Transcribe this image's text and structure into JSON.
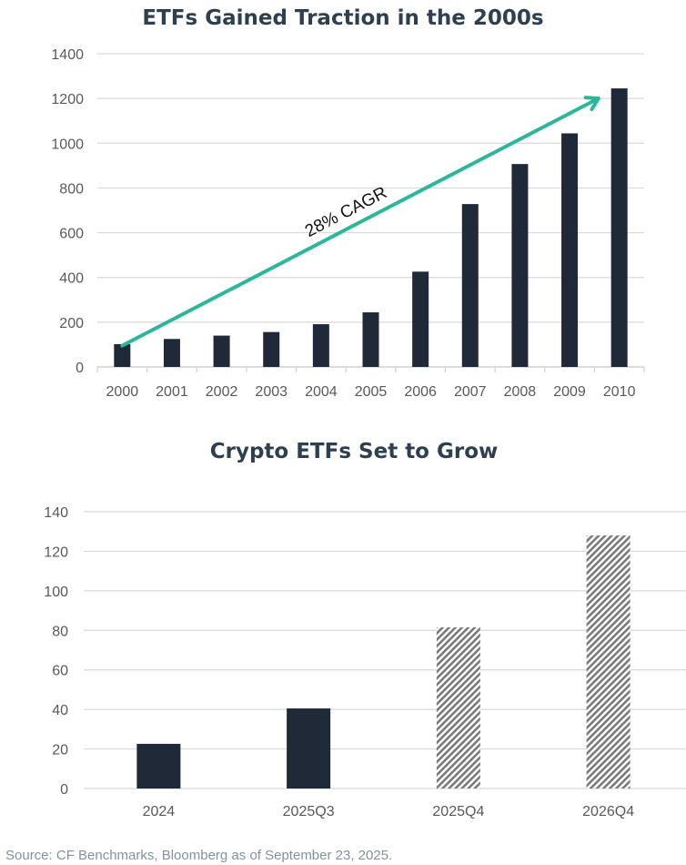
{
  "chart_data": [
    {
      "type": "bar",
      "title": "ETFs Gained Traction in the 2000s",
      "categories": [
        "2000",
        "2001",
        "2002",
        "2003",
        "2004",
        "2005",
        "2006",
        "2007",
        "2008",
        "2009",
        "2010"
      ],
      "values": [
        102,
        125,
        140,
        156,
        191,
        244,
        426,
        728,
        907,
        1044,
        1245
      ],
      "ylim": [
        0,
        1400
      ],
      "yticks": [
        0,
        200,
        400,
        600,
        800,
        1000,
        1200,
        1400
      ],
      "grid": true,
      "bar_color": "#1f2937",
      "annotation": {
        "text": "28% CAGR",
        "type": "arrow",
        "from": [
          "2000",
          95
        ],
        "to": [
          "2010",
          1200
        ],
        "color": "#2bb89a"
      }
    },
    {
      "type": "bar",
      "title": "Crypto ETFs Set to Grow",
      "categories": [
        "2024",
        "2025Q3",
        "2025Q4",
        "2026Q4"
      ],
      "values": [
        22.6,
        40.5,
        81.5,
        128
      ],
      "projected": [
        false,
        false,
        true,
        true
      ],
      "ylim": [
        0,
        140
      ],
      "yticks": [
        0,
        20,
        40,
        60,
        80,
        100,
        120,
        140
      ],
      "grid": true,
      "bar_color": "#1f2937",
      "projected_pattern": "diagonal hatch",
      "projected_color": "#7a7a7a"
    }
  ],
  "source": "Source: CF Benchmarks, Bloomberg as of September 23, 2025."
}
